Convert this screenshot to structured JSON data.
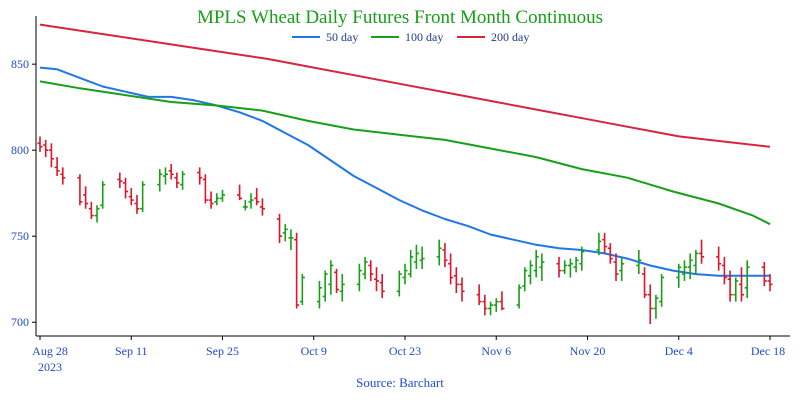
{
  "chart_data": {
    "type": "ohlc-line",
    "title": "MPLS Wheat Daily Futures Front Month Continuous",
    "source": "Source: Barchart",
    "ylim": [
      692,
      878
    ],
    "y_ticks": [
      700,
      750,
      800,
      850
    ],
    "x_ticks": [
      "Aug 28",
      "Sep 11",
      "Sep 25",
      "Oct 9",
      "Oct 23",
      "Nov 6",
      "Nov 20",
      "Dec 4",
      "Dec 18"
    ],
    "x_year_label": "2023",
    "grid": false,
    "legend_placement": "top-center",
    "colors": {
      "title": "#17a017",
      "axis_text": "#1f4bd1",
      "up": "#17a017",
      "down": "#e0142a",
      "ma50": "#1f77e6",
      "ma200": "#d8253f",
      "ma100": "#17a017"
    },
    "series": [
      {
        "name": "50 day",
        "key": "ma50",
        "points": [
          [
            0,
            848
          ],
          [
            3,
            847
          ],
          [
            7,
            842
          ],
          [
            11,
            837
          ],
          [
            15,
            834
          ],
          [
            19,
            831
          ],
          [
            23,
            831
          ],
          [
            27,
            829
          ],
          [
            31,
            826
          ],
          [
            35,
            822
          ],
          [
            39,
            817
          ],
          [
            43,
            810
          ],
          [
            47,
            803
          ],
          [
            51,
            794
          ],
          [
            55,
            785
          ],
          [
            59,
            778
          ],
          [
            63,
            771
          ],
          [
            67,
            765
          ],
          [
            71,
            760
          ],
          [
            75,
            756
          ],
          [
            79,
            751
          ],
          [
            83,
            748
          ],
          [
            87,
            745
          ],
          [
            91,
            743
          ],
          [
            95,
            742
          ],
          [
            99,
            740
          ],
          [
            103,
            737
          ],
          [
            107,
            733
          ],
          [
            111,
            730
          ],
          [
            115,
            728
          ],
          [
            119,
            727
          ],
          [
            123,
            727
          ],
          [
            127,
            727
          ],
          [
            128,
            727
          ]
        ]
      },
      {
        "name": "100 day",
        "key": "ma100",
        "points": [
          [
            0,
            840
          ],
          [
            7,
            836
          ],
          [
            15,
            832
          ],
          [
            23,
            828
          ],
          [
            31,
            826
          ],
          [
            39,
            823
          ],
          [
            47,
            817
          ],
          [
            55,
            812
          ],
          [
            63,
            809
          ],
          [
            71,
            806
          ],
          [
            79,
            801
          ],
          [
            87,
            796
          ],
          [
            95,
            789
          ],
          [
            103,
            784
          ],
          [
            111,
            776
          ],
          [
            119,
            769
          ],
          [
            125,
            762
          ],
          [
            128,
            757
          ]
        ]
      },
      {
        "name": "200 day",
        "key": "ma200",
        "points": [
          [
            0,
            873
          ],
          [
            8,
            869
          ],
          [
            16,
            865
          ],
          [
            24,
            861
          ],
          [
            32,
            857
          ],
          [
            40,
            853
          ],
          [
            48,
            848
          ],
          [
            56,
            843
          ],
          [
            64,
            838
          ],
          [
            72,
            833
          ],
          [
            80,
            828
          ],
          [
            88,
            823
          ],
          [
            96,
            818
          ],
          [
            104,
            813
          ],
          [
            112,
            808
          ],
          [
            120,
            805
          ],
          [
            128,
            802
          ]
        ]
      }
    ],
    "ohlc": [
      [
        0,
        804,
        808,
        799,
        802
      ],
      [
        1,
        803,
        806,
        796,
        800
      ],
      [
        2,
        800,
        804,
        790,
        795
      ],
      [
        3,
        790,
        796,
        785,
        788
      ],
      [
        4,
        786,
        790,
        780,
        784
      ],
      [
        7,
        784,
        786,
        768,
        770
      ],
      [
        8,
        774,
        779,
        766,
        769
      ],
      [
        9,
        766,
        770,
        760,
        762
      ],
      [
        10,
        762,
        768,
        758,
        766
      ],
      [
        11,
        768,
        782,
        766,
        780
      ],
      [
        14,
        783,
        787,
        778,
        782
      ],
      [
        15,
        781,
        784,
        772,
        776
      ],
      [
        16,
        773,
        778,
        768,
        771
      ],
      [
        17,
        769,
        774,
        763,
        766
      ],
      [
        18,
        766,
        782,
        764,
        780
      ],
      [
        21,
        780,
        789,
        776,
        786
      ],
      [
        22,
        785,
        790,
        780,
        786
      ],
      [
        23,
        788,
        792,
        783,
        786
      ],
      [
        24,
        784,
        787,
        778,
        781
      ],
      [
        25,
        780,
        788,
        777,
        786
      ],
      [
        28,
        787,
        790,
        780,
        784
      ],
      [
        29,
        783,
        786,
        769,
        771
      ],
      [
        30,
        771,
        776,
        766,
        769
      ],
      [
        31,
        770,
        775,
        768,
        772
      ],
      [
        32,
        772,
        777,
        770,
        774
      ],
      [
        35,
        774,
        780,
        771,
        772
      ],
      [
        36,
        767,
        771,
        765,
        767
      ],
      [
        37,
        770,
        775,
        766,
        771
      ],
      [
        38,
        772,
        778,
        768,
        770
      ],
      [
        39,
        767,
        772,
        762,
        766
      ],
      [
        42,
        760,
        763,
        746,
        750
      ],
      [
        43,
        752,
        757,
        747,
        754
      ],
      [
        44,
        749,
        754,
        742,
        749
      ],
      [
        45,
        748,
        752,
        708,
        710
      ],
      [
        46,
        712,
        728,
        710,
        726
      ],
      [
        49,
        712,
        724,
        708,
        720
      ],
      [
        50,
        715,
        730,
        712,
        728
      ],
      [
        51,
        722,
        736,
        716,
        733
      ],
      [
        52,
        729,
        731,
        717,
        719
      ],
      [
        53,
        718,
        728,
        712,
        722
      ],
      [
        56,
        722,
        734,
        718,
        730
      ],
      [
        57,
        728,
        738,
        725,
        735
      ],
      [
        58,
        733,
        736,
        724,
        728
      ],
      [
        59,
        725,
        732,
        718,
        724
      ],
      [
        60,
        723,
        728,
        714,
        718
      ],
      [
        63,
        718,
        730,
        715,
        728
      ],
      [
        64,
        726,
        734,
        722,
        730
      ],
      [
        65,
        728,
        742,
        726,
        738
      ],
      [
        66,
        735,
        745,
        731,
        740
      ],
      [
        67,
        736,
        744,
        731,
        737
      ],
      [
        70,
        738,
        748,
        733,
        743
      ],
      [
        71,
        742,
        746,
        732,
        736
      ],
      [
        72,
        734,
        740,
        722,
        726
      ],
      [
        73,
        727,
        732,
        717,
        722
      ],
      [
        74,
        722,
        726,
        712,
        718
      ],
      [
        77,
        716,
        722,
        710,
        712
      ],
      [
        78,
        712,
        716,
        704,
        708
      ],
      [
        79,
        708,
        712,
        704,
        710
      ],
      [
        80,
        710,
        714,
        706,
        712
      ],
      [
        81,
        712,
        718,
        707,
        708
      ],
      [
        84,
        710,
        722,
        708,
        720
      ],
      [
        85,
        721,
        732,
        718,
        730
      ],
      [
        86,
        727,
        736,
        722,
        733
      ],
      [
        87,
        730,
        742,
        726,
        738
      ],
      [
        88,
        732,
        740,
        724,
        735
      ],
      [
        91,
        734,
        738,
        726,
        730
      ],
      [
        92,
        730,
        736,
        728,
        733
      ],
      [
        93,
        733,
        737,
        726,
        734
      ],
      [
        94,
        732,
        738,
        729,
        736
      ],
      [
        95,
        734,
        744,
        730,
        741
      ],
      [
        98,
        742,
        752,
        739,
        747
      ],
      [
        99,
        748,
        752,
        740,
        744
      ],
      [
        100,
        743,
        746,
        734,
        737
      ],
      [
        101,
        735,
        740,
        724,
        728
      ],
      [
        102,
        730,
        738,
        724,
        734
      ],
      [
        105,
        733,
        742,
        728,
        736
      ],
      [
        106,
        728,
        732,
        714,
        716
      ],
      [
        107,
        716,
        722,
        699,
        708
      ],
      [
        108,
        708,
        716,
        702,
        714
      ],
      [
        109,
        712,
        728,
        709,
        726
      ],
      [
        112,
        726,
        734,
        720,
        732
      ],
      [
        113,
        728,
        736,
        724,
        732
      ],
      [
        114,
        732,
        740,
        725,
        736
      ],
      [
        115,
        733,
        742,
        728,
        740
      ],
      [
        116,
        740,
        748,
        734,
        738
      ],
      [
        119,
        738,
        744,
        730,
        734
      ],
      [
        120,
        733,
        738,
        722,
        726
      ],
      [
        121,
        725,
        730,
        712,
        716
      ],
      [
        122,
        716,
        726,
        712,
        724
      ],
      [
        123,
        722,
        732,
        712,
        716
      ],
      [
        124,
        720,
        736,
        714,
        732
      ],
      [
        127,
        732,
        735,
        721,
        724
      ],
      [
        128,
        724,
        728,
        718,
        722
      ]
    ]
  }
}
